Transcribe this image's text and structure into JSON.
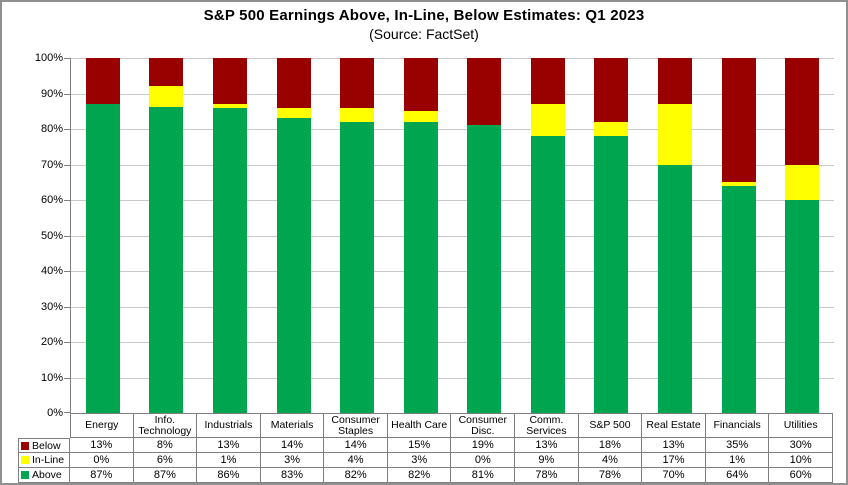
{
  "title": "S&P 500 Earnings Above, In-Line, Below Estimates: Q1 2023",
  "subtitle": "(Source: FactSet)",
  "colors": {
    "below": "#990000",
    "inline": "#FFFF00",
    "above": "#00A64F",
    "gridline": "#C9C9C9",
    "axis": "#808080",
    "table_border": "#7F7F7F"
  },
  "y_axis": {
    "tick_labels": [
      "100%",
      "90%",
      "80%",
      "70%",
      "60%",
      "50%",
      "40%",
      "30%",
      "20%",
      "10%",
      "0%"
    ]
  },
  "chart_data": {
    "type": "bar",
    "stacked": true,
    "percent_stacked": true,
    "title": "S&P 500 Earnings Above, In-Line, Below Estimates: Q1 2023",
    "subtitle": "(Source: FactSet)",
    "xlabel": "",
    "ylabel": "",
    "ylim": [
      0,
      100
    ],
    "ytick_step": 10,
    "grid": true,
    "legend_position": "table-left",
    "categories": [
      "Energy",
      "Info. Technology",
      "Industrials",
      "Materials",
      "Consumer Staples",
      "Health Care",
      "Consumer Disc.",
      "Comm. Services",
      "S&P 500",
      "Real Estate",
      "Financials",
      "Utilities"
    ],
    "series": [
      {
        "name": "Below",
        "color": "#990000",
        "values": [
          13,
          8,
          13,
          14,
          14,
          15,
          19,
          13,
          18,
          13,
          35,
          30
        ]
      },
      {
        "name": "In-Line",
        "color": "#FFFF00",
        "values": [
          0,
          6,
          1,
          3,
          4,
          3,
          0,
          9,
          4,
          17,
          1,
          10
        ]
      },
      {
        "name": "Above",
        "color": "#00A64F",
        "values": [
          87,
          87,
          86,
          83,
          82,
          82,
          81,
          78,
          78,
          70,
          64,
          60
        ]
      }
    ]
  },
  "table": {
    "rows": [
      {
        "label": "Below",
        "values": [
          "13%",
          "8%",
          "13%",
          "14%",
          "14%",
          "15%",
          "19%",
          "13%",
          "18%",
          "13%",
          "35%",
          "30%"
        ]
      },
      {
        "label": "In-Line",
        "values": [
          "0%",
          "6%",
          "1%",
          "3%",
          "4%",
          "3%",
          "0%",
          "9%",
          "4%",
          "17%",
          "1%",
          "10%"
        ]
      },
      {
        "label": "Above",
        "values": [
          "87%",
          "87%",
          "86%",
          "83%",
          "82%",
          "82%",
          "81%",
          "78%",
          "78%",
          "70%",
          "64%",
          "60%"
        ]
      }
    ]
  }
}
